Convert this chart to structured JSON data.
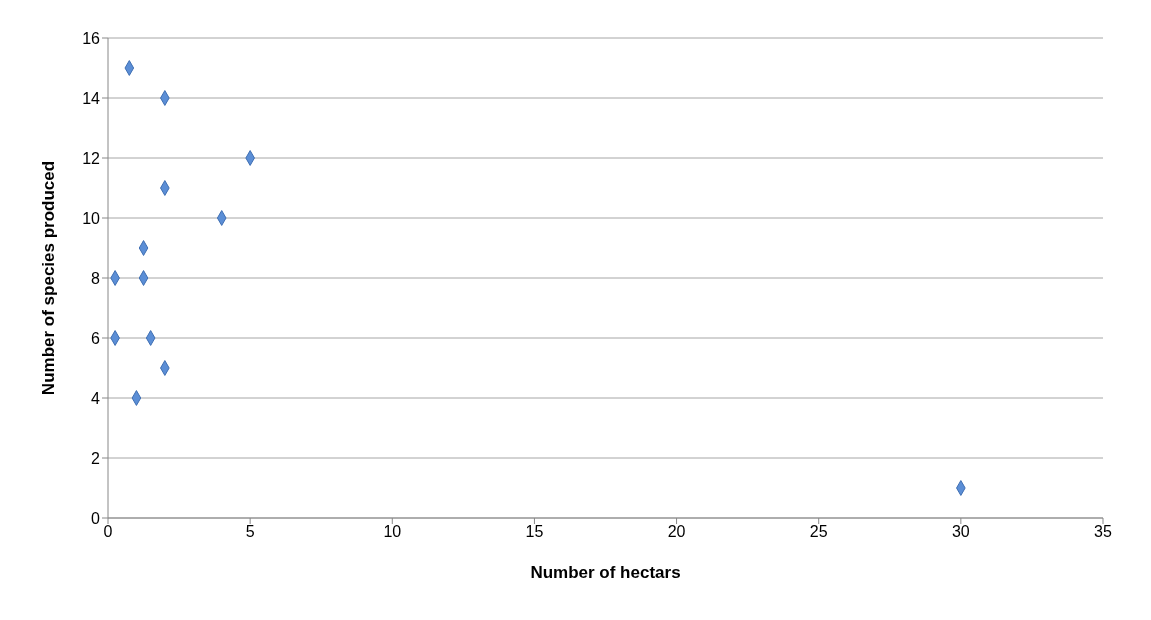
{
  "chart_data": {
    "type": "scatter",
    "xlabel": "Number of hectars",
    "ylabel": "Number of species produced",
    "x": [
      0.75,
      2,
      5,
      2,
      4,
      1.25,
      0.25,
      1.25,
      0.25,
      1.5,
      2,
      1,
      30
    ],
    "values": [
      15,
      14,
      12,
      11,
      10,
      9,
      8,
      8,
      6,
      6,
      5,
      4,
      1
    ],
    "color": "#5b8ed6",
    "marker": "diamond",
    "grid": "y",
    "legend": false,
    "xlim": [
      0,
      35
    ],
    "xticks": [
      0,
      5,
      10,
      15,
      20,
      25,
      30,
      35
    ],
    "ylim": [
      0,
      16
    ],
    "yticks": [
      0,
      2,
      4,
      6,
      8,
      10,
      12,
      14,
      16
    ]
  }
}
